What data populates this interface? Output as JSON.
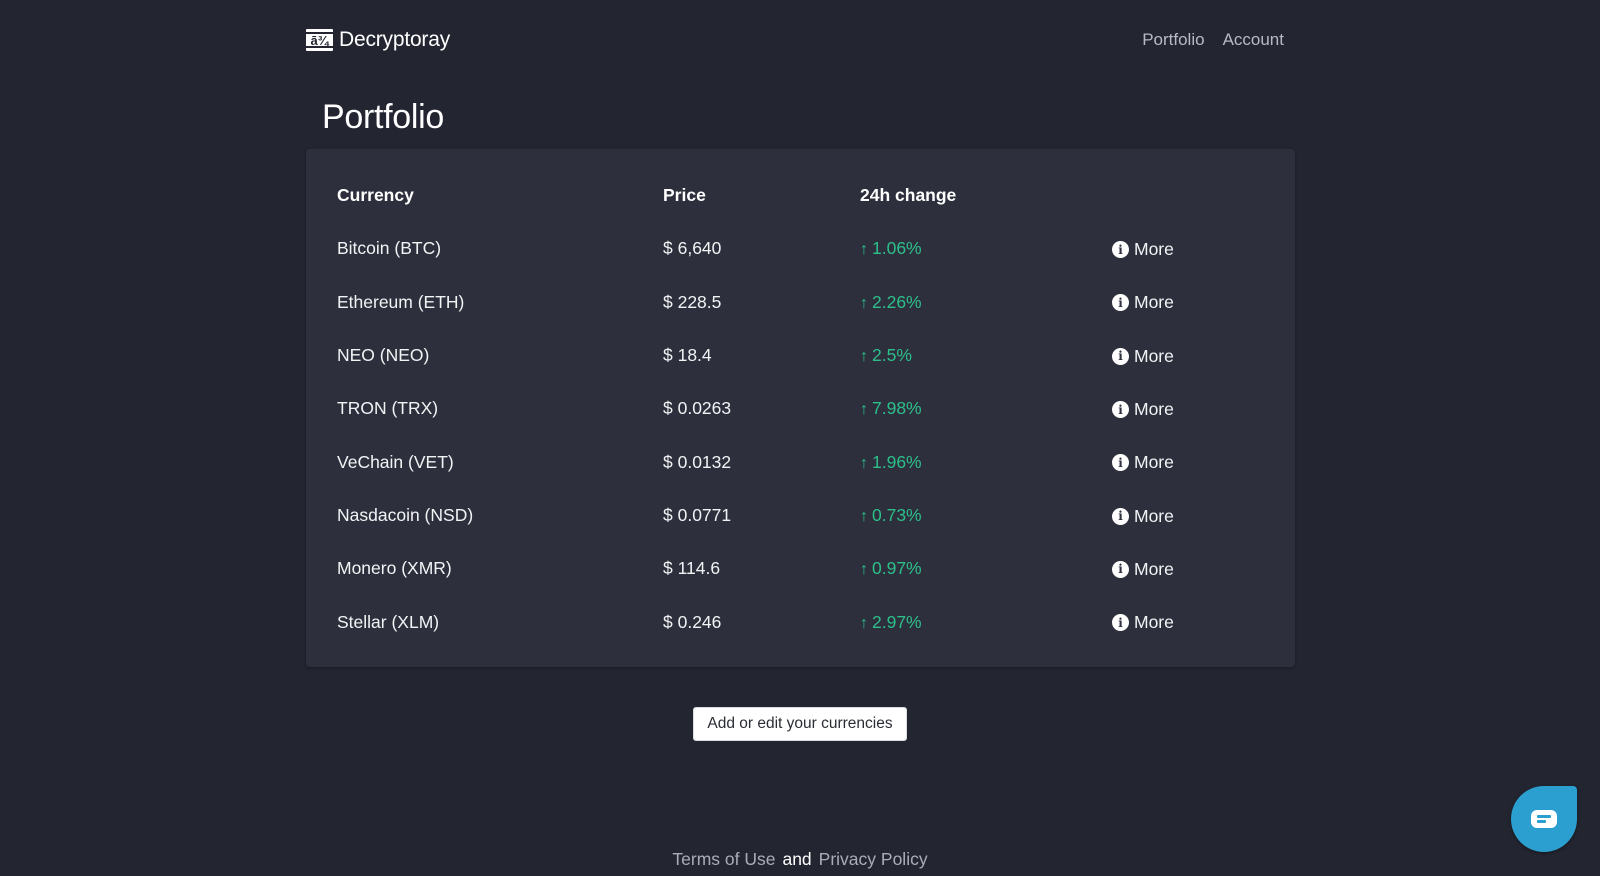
{
  "header": {
    "brand_glyph": "ā¾",
    "brand_name": "Decryptoray",
    "nav": [
      {
        "label": "Portfolio"
      },
      {
        "label": "Account"
      }
    ]
  },
  "page": {
    "title": "Portfolio"
  },
  "table": {
    "columns": [
      "Currency",
      "Price",
      "24h change",
      ""
    ],
    "rows": [
      {
        "currency": "Bitcoin (BTC)",
        "price": "$ 6,640",
        "arrow": "↑",
        "change": "1.06%",
        "action": "More"
      },
      {
        "currency": "Ethereum (ETH)",
        "price": "$ 228.5",
        "arrow": "↑",
        "change": "2.26%",
        "action": "More"
      },
      {
        "currency": "NEO (NEO)",
        "price": "$ 18.4",
        "arrow": "↑",
        "change": "2.5%",
        "action": "More"
      },
      {
        "currency": "TRON (TRX)",
        "price": "$ 0.0263",
        "arrow": "↑",
        "change": "7.98%",
        "action": "More"
      },
      {
        "currency": "VeChain (VET)",
        "price": "$ 0.0132",
        "arrow": "↑",
        "change": "1.96%",
        "action": "More"
      },
      {
        "currency": "Nasdacoin (NSD)",
        "price": "$ 0.0771",
        "arrow": "↑",
        "change": "0.73%",
        "action": "More"
      },
      {
        "currency": "Monero (XMR)",
        "price": "$ 114.6",
        "arrow": "↑",
        "change": "0.97%",
        "action": "More"
      },
      {
        "currency": "Stellar (XLM)",
        "price": "$ 0.246",
        "arrow": "↑",
        "change": "2.97%",
        "action": "More"
      }
    ],
    "info_icon_glyph": "i"
  },
  "actions": {
    "add_edit_label": "Add or edit your currencies"
  },
  "footer": {
    "terms": "Terms of Use",
    "and": "and",
    "privacy": "Privacy Policy"
  },
  "colors": {
    "background": "#232631",
    "card": "#2d303c",
    "positive_change": "#2cbf8a",
    "chat_widget": "#2c9fd1"
  }
}
